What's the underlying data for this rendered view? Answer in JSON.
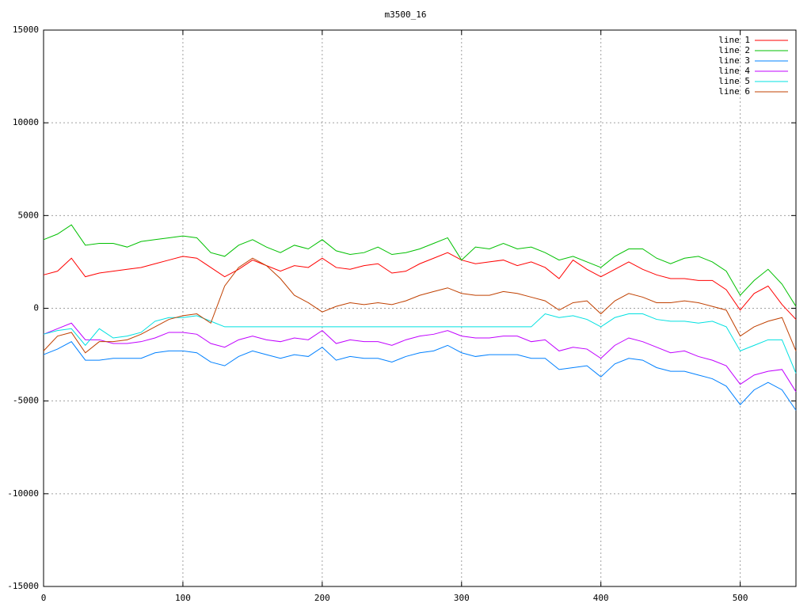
{
  "chart_data": {
    "type": "line",
    "title": "m3500_16",
    "x": [
      0,
      10,
      20,
      30,
      40,
      50,
      60,
      70,
      80,
      90,
      100,
      110,
      120,
      130,
      140,
      150,
      160,
      170,
      180,
      190,
      200,
      210,
      220,
      230,
      240,
      250,
      260,
      270,
      280,
      290,
      300,
      310,
      320,
      330,
      340,
      350,
      360,
      370,
      380,
      390,
      400,
      410,
      420,
      430,
      440,
      450,
      460,
      470,
      480,
      490,
      500,
      510,
      520,
      530,
      540
    ],
    "series": [
      {
        "name": "line 1",
        "color": "#ff0000",
        "values": [
          1800,
          2000,
          2700,
          1700,
          1900,
          2000,
          2100,
          2200,
          2400,
          2600,
          2800,
          2700,
          2200,
          1700,
          2100,
          2600,
          2300,
          2000,
          2300,
          2200,
          2700,
          2200,
          2100,
          2300,
          2400,
          1900,
          2000,
          2400,
          2700,
          3000,
          2600,
          2400,
          2500,
          2600,
          2300,
          2500,
          2200,
          1600,
          2600,
          2100,
          1700,
          2100,
          2500,
          2100,
          1800,
          1600,
          1600,
          1500,
          1500,
          1000,
          -100,
          800,
          1200,
          200,
          -600
        ]
      },
      {
        "name": "line 2",
        "color": "#00c000",
        "values": [
          3700,
          4000,
          4500,
          3400,
          3500,
          3500,
          3300,
          3600,
          3700,
          3800,
          3900,
          3800,
          3000,
          2800,
          3400,
          3700,
          3300,
          3000,
          3400,
          3200,
          3700,
          3100,
          2900,
          3000,
          3300,
          2900,
          3000,
          3200,
          3500,
          3800,
          2600,
          3300,
          3200,
          3500,
          3200,
          3300,
          3000,
          2600,
          2800,
          2500,
          2200,
          2800,
          3200,
          3200,
          2700,
          2400,
          2700,
          2800,
          2500,
          2000,
          700,
          1500,
          2100,
          1300,
          100
        ]
      },
      {
        "name": "line 3",
        "color": "#0080ff",
        "values": [
          -2500,
          -2200,
          -1800,
          -2800,
          -2800,
          -2700,
          -2700,
          -2700,
          -2400,
          -2300,
          -2300,
          -2400,
          -2900,
          -3100,
          -2600,
          -2300,
          -2500,
          -2700,
          -2500,
          -2600,
          -2100,
          -2800,
          -2600,
          -2700,
          -2700,
          -2900,
          -2600,
          -2400,
          -2300,
          -2000,
          -2400,
          -2600,
          -2500,
          -2500,
          -2500,
          -2700,
          -2700,
          -3300,
          -3200,
          -3100,
          -3700,
          -3000,
          -2700,
          -2800,
          -3200,
          -3400,
          -3400,
          -3600,
          -3800,
          -4200,
          -5200,
          -4400,
          -4000,
          -4400,
          -5500
        ]
      },
      {
        "name": "line 4",
        "color": "#c000ff",
        "values": [
          -1400,
          -1100,
          -800,
          -1700,
          -1700,
          -1900,
          -1900,
          -1800,
          -1600,
          -1300,
          -1300,
          -1400,
          -1900,
          -2100,
          -1700,
          -1500,
          -1700,
          -1800,
          -1600,
          -1700,
          -1200,
          -1900,
          -1700,
          -1800,
          -1800,
          -2000,
          -1700,
          -1500,
          -1400,
          -1200,
          -1500,
          -1600,
          -1600,
          -1500,
          -1500,
          -1800,
          -1700,
          -2300,
          -2100,
          -2200,
          -2700,
          -2000,
          -1600,
          -1800,
          -2100,
          -2400,
          -2300,
          -2600,
          -2800,
          -3100,
          -4100,
          -3600,
          -3400,
          -3300,
          -4500
        ]
      },
      {
        "name": "line 5",
        "color": "#00e0e0",
        "values": [
          -1400,
          -1200,
          -1100,
          -2000,
          -1100,
          -1600,
          -1500,
          -1300,
          -700,
          -500,
          -500,
          -400,
          -700,
          -1000,
          -1000,
          -1000,
          -1000,
          -1000,
          -1000,
          -1000,
          -1000,
          -1000,
          -1000,
          -1000,
          -1000,
          -1000,
          -1000,
          -1000,
          -1000,
          -1000,
          -1000,
          -1000,
          -1000,
          -1000,
          -1000,
          -1000,
          -300,
          -500,
          -400,
          -600,
          -1000,
          -500,
          -300,
          -300,
          -600,
          -700,
          -700,
          -800,
          -700,
          -1000,
          -2300,
          -2000,
          -1700,
          -1700,
          -3500
        ]
      },
      {
        "name": "line 6",
        "color": "#c04000",
        "values": [
          -2300,
          -1500,
          -1300,
          -2400,
          -1800,
          -1800,
          -1700,
          -1400,
          -1000,
          -600,
          -400,
          -300,
          -800,
          1200,
          2200,
          2700,
          2300,
          1600,
          700,
          300,
          -200,
          100,
          300,
          200,
          300,
          200,
          400,
          700,
          900,
          1100,
          800,
          700,
          700,
          900,
          800,
          600,
          400,
          -100,
          300,
          400,
          -300,
          400,
          800,
          600,
          300,
          300,
          400,
          300,
          100,
          -100,
          -1500,
          -1000,
          -700,
          -500,
          -2300
        ]
      }
    ],
    "xlim": [
      0,
      540
    ],
    "ylim": [
      -15000,
      15000
    ],
    "xticks": [
      0,
      100,
      200,
      300,
      400,
      500
    ],
    "yticks": [
      -15000,
      -10000,
      -5000,
      0,
      5000,
      10000,
      15000
    ],
    "grid": true,
    "legend": "top-right"
  }
}
